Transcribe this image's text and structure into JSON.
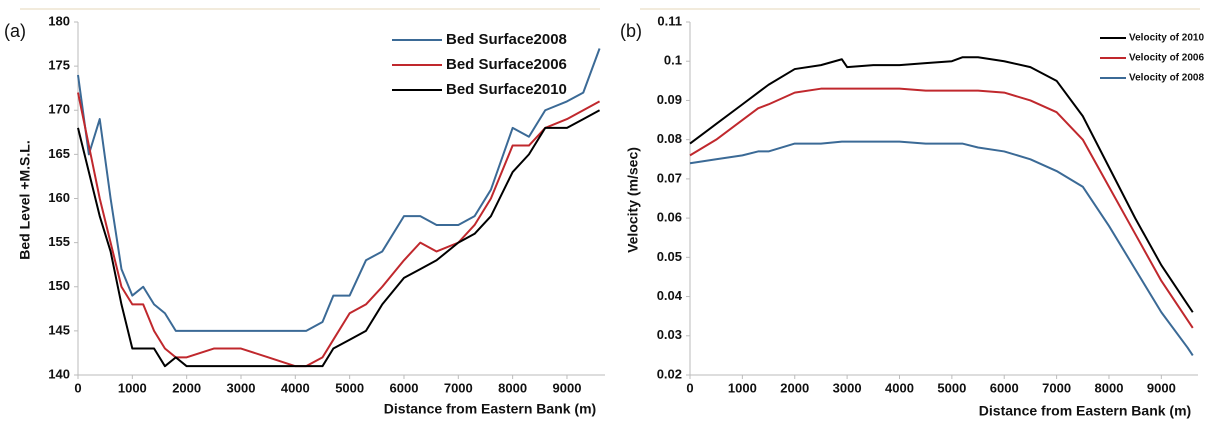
{
  "chart_data": [
    {
      "type": "line",
      "panel_label": "(a)",
      "ylabel": "Bed Level +M.S.L.",
      "xlabel": "Distance from Eastern Bank (m)",
      "x": [
        0,
        200,
        400,
        600,
        800,
        1000,
        1200,
        1400,
        1600,
        1800,
        2000,
        2500,
        3000,
        3500,
        4000,
        4200,
        4500,
        4700,
        5000,
        5300,
        5600,
        6000,
        6300,
        6600,
        7000,
        7300,
        7600,
        8000,
        8300,
        8600,
        9000,
        9300,
        9600
      ],
      "series": [
        {
          "name": "Bed Surface2008",
          "color": "#3b6a96",
          "values": [
            174,
            165,
            169,
            160,
            152,
            149,
            150,
            148,
            147,
            145,
            145,
            145,
            145,
            145,
            145,
            145,
            146,
            149,
            149,
            153,
            154,
            158,
            158,
            157,
            157,
            158,
            161,
            168,
            167,
            170,
            171,
            172,
            177
          ]
        },
        {
          "name": "Bed Surface2006",
          "color": "#c0282d",
          "values": [
            172,
            166,
            160,
            155,
            150,
            148,
            148,
            145,
            143,
            142,
            142,
            143,
            143,
            142,
            141,
            141,
            142,
            144,
            147,
            148,
            150,
            153,
            155,
            154,
            155,
            157,
            160,
            166,
            166,
            168,
            169,
            170,
            171
          ]
        },
        {
          "name": "Bed Surface2010",
          "color": "#000000",
          "values": [
            168,
            163,
            158,
            154,
            148,
            143,
            143,
            143,
            141,
            142,
            141,
            141,
            141,
            141,
            141,
            141,
            141,
            143,
            144,
            145,
            148,
            151,
            152,
            153,
            155,
            156,
            158,
            163,
            165,
            168,
            168,
            169,
            170
          ]
        }
      ],
      "xlim": [
        0,
        9700
      ],
      "xticks": [
        0,
        1000,
        2000,
        3000,
        4000,
        5000,
        6000,
        7000,
        8000,
        9000
      ],
      "ylim": [
        140,
        180
      ],
      "yticks": [
        140,
        145,
        150,
        155,
        160,
        165,
        170,
        175,
        180
      ],
      "legend": "upper right"
    },
    {
      "type": "line",
      "panel_label": "(b)",
      "ylabel": "Velocity (m/sec)",
      "xlabel": "Distance from Eastern Bank (m)",
      "x": [
        0,
        500,
        1000,
        1300,
        1500,
        2000,
        2500,
        2900,
        3000,
        3500,
        4000,
        4500,
        5000,
        5200,
        5500,
        6000,
        6500,
        7000,
        7500,
        8000,
        8500,
        9000,
        9500,
        9600
      ],
      "series": [
        {
          "name": "Velocity of 2010",
          "color": "#000000",
          "values": [
            0.079,
            0.084,
            0.089,
            0.092,
            0.094,
            0.098,
            0.099,
            0.1005,
            0.0985,
            0.099,
            0.099,
            0.0995,
            0.1,
            0.101,
            0.101,
            0.1,
            0.0985,
            0.095,
            0.086,
            0.073,
            0.06,
            0.048,
            0.038,
            0.036
          ]
        },
        {
          "name": "Velocity of 2006",
          "color": "#c0282d",
          "values": [
            0.076,
            0.08,
            0.085,
            0.088,
            0.089,
            0.092,
            0.093,
            0.093,
            0.093,
            0.093,
            0.093,
            0.0925,
            0.0925,
            0.0925,
            0.0925,
            0.092,
            0.09,
            0.087,
            0.08,
            0.068,
            0.056,
            0.044,
            0.034,
            0.032
          ]
        },
        {
          "name": "Velocity of 2008",
          "color": "#3b6a96",
          "values": [
            0.074,
            0.075,
            0.076,
            0.077,
            0.077,
            0.079,
            0.079,
            0.0795,
            0.0795,
            0.0795,
            0.0795,
            0.079,
            0.079,
            0.079,
            0.078,
            0.077,
            0.075,
            0.072,
            0.068,
            0.058,
            0.047,
            0.036,
            0.027,
            0.025
          ]
        }
      ],
      "xlim": [
        0,
        9700
      ],
      "xticks": [
        0,
        1000,
        2000,
        3000,
        4000,
        5000,
        6000,
        7000,
        8000,
        9000
      ],
      "ylim": [
        0.02,
        0.11
      ],
      "yticks": [
        0.02,
        0.03,
        0.04,
        0.05,
        0.06,
        0.07,
        0.08,
        0.09,
        0.1,
        0.11
      ],
      "legend": "upper right"
    }
  ]
}
